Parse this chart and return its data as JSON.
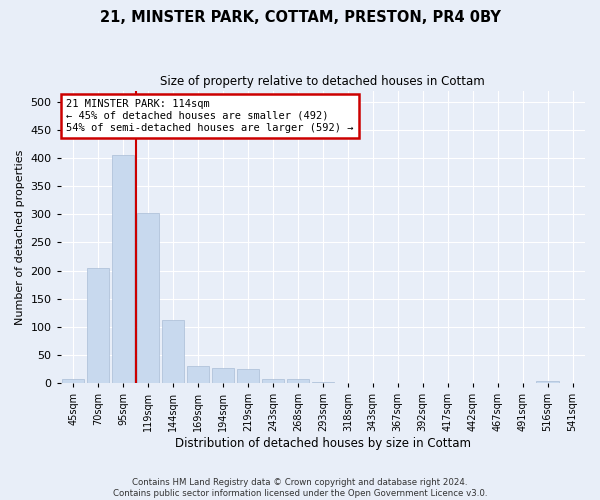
{
  "title": "21, MINSTER PARK, COTTAM, PRESTON, PR4 0BY",
  "subtitle": "Size of property relative to detached houses in Cottam",
  "xlabel": "Distribution of detached houses by size in Cottam",
  "ylabel": "Number of detached properties",
  "bar_color": "#c8d9ee",
  "bar_edge_color": "#aabdd6",
  "categories": [
    "45sqm",
    "70sqm",
    "95sqm",
    "119sqm",
    "144sqm",
    "169sqm",
    "194sqm",
    "219sqm",
    "243sqm",
    "268sqm",
    "293sqm",
    "318sqm",
    "343sqm",
    "367sqm",
    "392sqm",
    "417sqm",
    "442sqm",
    "467sqm",
    "491sqm",
    "516sqm",
    "541sqm"
  ],
  "values": [
    8,
    205,
    405,
    302,
    112,
    30,
    27,
    25,
    8,
    7,
    2,
    1,
    0,
    0,
    0,
    0,
    0,
    0,
    0,
    3,
    0
  ],
  "ylim": [
    0,
    520
  ],
  "yticks": [
    0,
    50,
    100,
    150,
    200,
    250,
    300,
    350,
    400,
    450,
    500
  ],
  "property_line_x": 2.5,
  "annotation_line1": "21 MINSTER PARK: 114sqm",
  "annotation_line2": "← 45% of detached houses are smaller (492)",
  "annotation_line3": "54% of semi-detached houses are larger (592) →",
  "annotation_box_color": "#ffffff",
  "annotation_box_edge": "#cc0000",
  "vline_color": "#cc0000",
  "background_color": "#e8eef8",
  "grid_color": "#ffffff",
  "fig_bg_color": "#e8eef8",
  "footer_line1": "Contains HM Land Registry data © Crown copyright and database right 2024.",
  "footer_line2": "Contains public sector information licensed under the Open Government Licence v3.0."
}
